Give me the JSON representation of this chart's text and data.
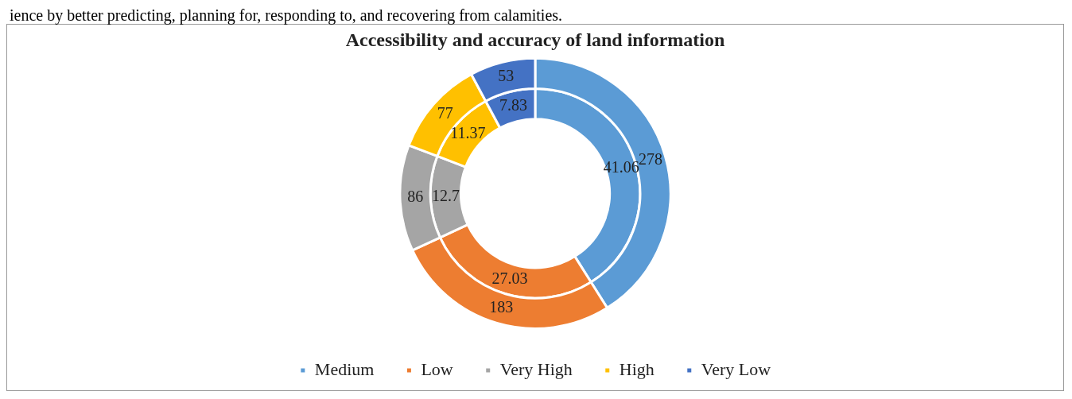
{
  "chart_data": {
    "type": "donut",
    "title": "Accessibility and accuracy of land information",
    "annotations": [
      "ience by better predicting, planning for, responding to, and recovering from calamities."
    ],
    "categories": [
      "Medium",
      "Low",
      "Very High",
      "High",
      "Very Low"
    ],
    "colors": [
      "#5b9bd5",
      "#ed7d31",
      "#a5a5a5",
      "#ffc000",
      "#4472c4"
    ],
    "series": [
      {
        "values": [
          278,
          183,
          86,
          77,
          53
        ]
      },
      {
        "values": [
          41.06,
          27.03,
          12.7,
          11.37,
          7.83
        ]
      }
    ],
    "data_labels": true,
    "legend": "bottom"
  }
}
